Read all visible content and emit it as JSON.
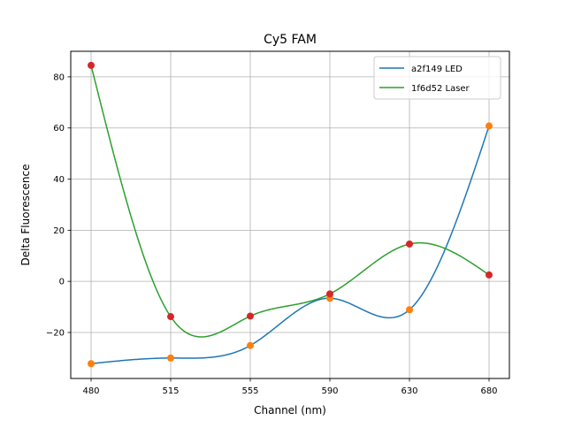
{
  "chart_data": {
    "type": "line",
    "title": "Cy5 FAM",
    "xlabel": "Channel (nm)",
    "ylabel": "Delta Fluorescence",
    "categories": [
      "480",
      "515",
      "555",
      "590",
      "630",
      "680"
    ],
    "ylim": [
      -38,
      90
    ],
    "yticks": [
      -20,
      0,
      20,
      40,
      60,
      80
    ],
    "grid": true,
    "legend_position": "top-right",
    "series": [
      {
        "name": "a2f149 LED",
        "color": "#1f77b4",
        "marker_color": "#ff7f0e",
        "values": [
          -32.2,
          -30.0,
          -25.1,
          -6.6,
          -11.1,
          60.8
        ]
      },
      {
        "name": "1f6d52 Laser",
        "color": "#2ca02c",
        "marker_color": "#d62728",
        "values": [
          84.5,
          -13.8,
          -13.6,
          -4.9,
          14.6,
          2.5
        ]
      }
    ]
  }
}
